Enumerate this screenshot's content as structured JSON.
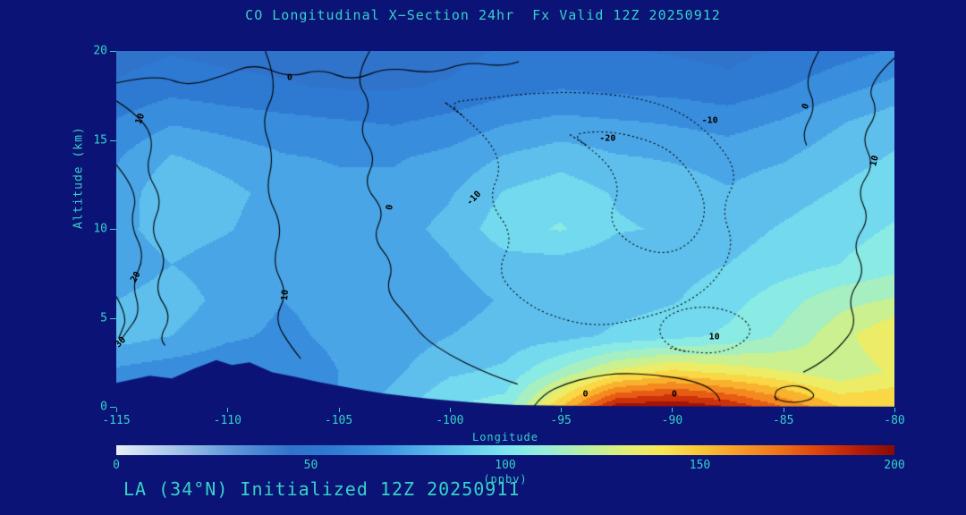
{
  "title": "CO Longitudinal X−Section 24hr  Fx Valid 12Z 20250912",
  "footer": "LA (34°N) Initialized 12Z 20250911",
  "colors": {
    "background": "#0b1377",
    "text": "#35d2c6",
    "contour": "#000000"
  },
  "chart_data": {
    "type": "heatmap",
    "xlabel": "Longitude",
    "ylabel": "Altitude (km)",
    "colorbar_label": "(ppbv)",
    "x_range": [
      -115,
      -80
    ],
    "y_range": [
      0,
      20
    ],
    "x_ticks": [
      -115,
      -110,
      -105,
      -100,
      -95,
      -90,
      -85,
      -80
    ],
    "y_ticks": [
      0,
      5,
      10,
      15,
      20
    ],
    "colorbar_ticks": [
      0,
      50,
      100,
      150,
      200
    ],
    "value_range": [
      0,
      200
    ],
    "band_step": 10,
    "colormap": [
      [
        0,
        "#e9eef7"
      ],
      [
        15,
        "#a6c6ea"
      ],
      [
        30,
        "#5e97d9"
      ],
      [
        45,
        "#3073cb"
      ],
      [
        55,
        "#2e79d2"
      ],
      [
        70,
        "#3f97e2"
      ],
      [
        80,
        "#54b2ea"
      ],
      [
        90,
        "#67ccee"
      ],
      [
        100,
        "#7ce6ee"
      ],
      [
        110,
        "#97eeda"
      ],
      [
        120,
        "#b6f0a6"
      ],
      [
        130,
        "#def078"
      ],
      [
        140,
        "#f9e854"
      ],
      [
        150,
        "#f9c636"
      ],
      [
        160,
        "#f79d26"
      ],
      [
        170,
        "#ef7517"
      ],
      [
        180,
        "#df430e"
      ],
      [
        190,
        "#b71e07"
      ],
      [
        200,
        "#8a0a04"
      ]
    ],
    "lons": [
      -115,
      -112.5,
      -110,
      -107.5,
      -105,
      -102.5,
      -100,
      -97.5,
      -95,
      -92.5,
      -90,
      -87.5,
      -85,
      -82.5,
      -80
    ],
    "alts": [
      0,
      2,
      4,
      6,
      8,
      10,
      12,
      14,
      16,
      18,
      20
    ],
    "grid": [
      [
        60,
        60,
        60,
        65,
        70,
        85,
        100,
        105,
        150,
        195,
        200,
        190,
        170,
        150,
        150
      ],
      [
        68,
        64,
        62,
        64,
        70,
        78,
        88,
        92,
        112,
        132,
        142,
        136,
        130,
        122,
        132
      ],
      [
        85,
        80,
        72,
        68,
        72,
        74,
        80,
        84,
        86,
        92,
        96,
        102,
        112,
        126,
        140
      ],
      [
        80,
        86,
        76,
        70,
        73,
        72,
        76,
        81,
        83,
        86,
        89,
        96,
        106,
        116,
        121
      ],
      [
        72,
        80,
        74,
        71,
        76,
        73,
        79,
        86,
        86,
        83,
        86,
        90,
        95,
        100,
        106
      ],
      [
        76,
        86,
        81,
        73,
        79,
        76,
        83,
        96,
        101,
        91,
        89,
        86,
        91,
        96,
        101
      ],
      [
        73,
        89,
        83,
        76,
        73,
        73,
        79,
        91,
        96,
        89,
        86,
        81,
        86,
        91,
        96
      ],
      [
        69,
        81,
        76,
        71,
        69,
        69,
        73,
        81,
        86,
        81,
        79,
        76,
        79,
        86,
        91
      ],
      [
        61,
        69,
        66,
        63,
        61,
        59,
        63,
        69,
        73,
        71,
        69,
        66,
        71,
        79,
        86
      ],
      [
        51,
        56,
        53,
        51,
        49,
        49,
        51,
        56,
        59,
        57,
        56,
        53,
        59,
        66,
        73
      ],
      [
        46,
        49,
        47,
        46,
        45,
        45,
        47,
        51,
        53,
        51,
        49,
        47,
        51,
        56,
        61
      ]
    ],
    "terrain": [
      [
        -115,
        1.35
      ],
      [
        -113.5,
        1.75
      ],
      [
        -112.5,
        1.6
      ],
      [
        -111.5,
        2.15
      ],
      [
        -110.5,
        2.62
      ],
      [
        -109.8,
        2.35
      ],
      [
        -109,
        2.5
      ],
      [
        -108,
        1.95
      ],
      [
        -107,
        1.7
      ],
      [
        -106,
        1.42
      ],
      [
        -105,
        1.18
      ],
      [
        -104,
        0.95
      ],
      [
        -103,
        0.75
      ],
      [
        -102,
        0.6
      ],
      [
        -101,
        0.46
      ],
      [
        -100,
        0.35
      ],
      [
        -99,
        0.25
      ],
      [
        -98,
        0.16
      ],
      [
        -97,
        0.1
      ],
      [
        -95,
        0.06
      ],
      [
        -92,
        0.04
      ],
      [
        -88,
        0.03
      ],
      [
        -84,
        0.02
      ],
      [
        -80,
        0.01
      ]
    ],
    "contours": [
      {
        "level": 0,
        "style": "solid",
        "closed": false,
        "points": [
          [
            -115,
            18.2
          ],
          [
            -113.2,
            18.7
          ],
          [
            -111.8,
            18.0
          ],
          [
            -110.2,
            18.6
          ],
          [
            -108.8,
            19.3
          ],
          [
            -107.2,
            18.5
          ],
          [
            -105.8,
            19.0
          ],
          [
            -104.4,
            18.3
          ],
          [
            -102.8,
            19.1
          ],
          [
            -100.8,
            18.7
          ],
          [
            -99.2,
            19.4
          ],
          [
            -97.6,
            19.1
          ],
          [
            -96.2,
            19.7
          ]
        ]
      },
      {
        "level": 10,
        "style": "solid",
        "closed": false,
        "points": [
          [
            -115,
            17.2
          ],
          [
            -113.9,
            16.3
          ],
          [
            -113.3,
            14.9
          ],
          [
            -113.7,
            13.3
          ],
          [
            -112.9,
            11.6
          ],
          [
            -113.5,
            9.9
          ],
          [
            -112.7,
            8.3
          ],
          [
            -113.3,
            6.6
          ],
          [
            -112.5,
            5.1
          ],
          [
            -113.1,
            3.8
          ],
          [
            -112.5,
            3.1
          ]
        ]
      },
      {
        "level": 20,
        "style": "solid",
        "closed": false,
        "points": [
          [
            -115,
            13.6
          ],
          [
            -114.0,
            12.1
          ],
          [
            -114.4,
            10.3
          ],
          [
            -113.7,
            8.5
          ],
          [
            -114.3,
            6.9
          ],
          [
            -113.9,
            5.3
          ],
          [
            -114.6,
            4.1
          ],
          [
            -115,
            3.4
          ]
        ]
      },
      {
        "level": 30,
        "style": "solid",
        "closed": false,
        "points": [
          [
            -115,
            6.2
          ],
          [
            -114.5,
            5.1
          ],
          [
            -114.8,
            4.1
          ],
          [
            -115,
            3.6
          ]
        ]
      },
      {
        "level": 0,
        "style": "solid",
        "closed": false,
        "points": [
          [
            -103.6,
            20
          ],
          [
            -104.3,
            18.5
          ],
          [
            -103.5,
            17.0
          ],
          [
            -104.1,
            15.5
          ],
          [
            -103.3,
            14.0
          ],
          [
            -103.9,
            12.5
          ],
          [
            -102.9,
            11.0
          ],
          [
            -103.5,
            9.5
          ],
          [
            -102.5,
            8.0
          ],
          [
            -102.9,
            6.5
          ],
          [
            -101.9,
            5.1
          ],
          [
            -101.2,
            3.9
          ],
          [
            -100.0,
            2.9
          ],
          [
            -98.7,
            2.1
          ],
          [
            -97.5,
            1.5
          ],
          [
            -96.4,
            1.05
          ]
        ]
      },
      {
        "level": 10,
        "style": "solid",
        "closed": false,
        "points": [
          [
            -108.3,
            20
          ],
          [
            -107.7,
            18.1
          ],
          [
            -108.5,
            16.1
          ],
          [
            -107.9,
            14.1
          ],
          [
            -108.3,
            12.1
          ],
          [
            -107.5,
            10.1
          ],
          [
            -108.0,
            8.1
          ],
          [
            -107.3,
            6.4
          ],
          [
            -107.9,
            4.9
          ],
          [
            -107.1,
            3.3
          ],
          [
            -106.3,
            2.1
          ]
        ]
      },
      {
        "level": -10,
        "style": "dotted",
        "closed": true,
        "points": [
          [
            -100.2,
            17.1
          ],
          [
            -98.6,
            15.6
          ],
          [
            -97.6,
            13.6
          ],
          [
            -98.3,
            11.6
          ],
          [
            -97.1,
            9.6
          ],
          [
            -97.9,
            7.6
          ],
          [
            -96.9,
            6.1
          ],
          [
            -95.5,
            5.1
          ],
          [
            -93.5,
            4.5
          ],
          [
            -91.5,
            4.9
          ],
          [
            -89.5,
            5.7
          ],
          [
            -88.0,
            7.1
          ],
          [
            -87.2,
            9.1
          ],
          [
            -87.8,
            11.1
          ],
          [
            -87.0,
            13.1
          ],
          [
            -88.1,
            15.1
          ],
          [
            -89.6,
            16.6
          ],
          [
            -91.6,
            17.4
          ],
          [
            -94.1,
            17.7
          ],
          [
            -96.6,
            17.6
          ],
          [
            -98.6,
            17.3
          ]
        ]
      },
      {
        "level": -20,
        "style": "dotted",
        "closed": true,
        "points": [
          [
            -94.6,
            15.3
          ],
          [
            -93.1,
            14.1
          ],
          [
            -92.3,
            12.3
          ],
          [
            -92.9,
            10.5
          ],
          [
            -91.9,
            9.1
          ],
          [
            -90.3,
            8.5
          ],
          [
            -89.0,
            9.3
          ],
          [
            -88.4,
            11.1
          ],
          [
            -89.0,
            12.9
          ],
          [
            -90.1,
            14.5
          ],
          [
            -91.9,
            15.3
          ],
          [
            -93.3,
            15.5
          ]
        ]
      },
      {
        "level": 10,
        "style": "dotted",
        "closed": true,
        "points": [
          [
            -90.1,
            3.3
          ],
          [
            -88.6,
            2.9
          ],
          [
            -87.1,
            3.3
          ],
          [
            -86.3,
            4.3
          ],
          [
            -87.1,
            5.3
          ],
          [
            -88.6,
            5.7
          ],
          [
            -90.1,
            5.3
          ],
          [
            -90.7,
            4.3
          ]
        ]
      },
      {
        "level": 0,
        "style": "solid",
        "closed": false,
        "points": [
          [
            -80,
            19.6
          ],
          [
            -81.3,
            18.1
          ],
          [
            -80.7,
            16.6
          ],
          [
            -81.5,
            15.1
          ],
          [
            -80.9,
            13.6
          ],
          [
            -81.7,
            12.1
          ],
          [
            -81.1,
            10.6
          ],
          [
            -81.9,
            9.1
          ],
          [
            -81.3,
            7.6
          ],
          [
            -82.1,
            6.1
          ],
          [
            -81.7,
            4.6
          ],
          [
            -82.5,
            3.3
          ],
          [
            -83.5,
            2.3
          ],
          [
            -84.7,
            1.6
          ]
        ]
      },
      {
        "level": 0,
        "style": "solid",
        "closed": false,
        "points": [
          [
            -83.4,
            20
          ],
          [
            -84.1,
            18.4
          ],
          [
            -83.5,
            16.9
          ],
          [
            -84.2,
            15.3
          ],
          [
            -83.7,
            14.1
          ]
        ]
      },
      {
        "level": 0,
        "style": "solid",
        "closed": false,
        "points": [
          [
            -96.2,
            0.05
          ],
          [
            -95.8,
            0.7
          ],
          [
            -94.8,
            1.3
          ],
          [
            -93.6,
            1.7
          ],
          [
            -92.3,
            1.9
          ],
          [
            -90.8,
            1.8
          ],
          [
            -89.4,
            1.55
          ],
          [
            -88.4,
            1.15
          ],
          [
            -87.9,
            0.6
          ],
          [
            -87.8,
            0.05
          ]
        ]
      },
      {
        "level": 0,
        "style": "solid",
        "closed": true,
        "points": [
          [
            -85.3,
            0.35
          ],
          [
            -85.5,
            0.85
          ],
          [
            -84.7,
            1.25
          ],
          [
            -83.9,
            1.05
          ],
          [
            -83.5,
            0.55
          ],
          [
            -84.3,
            0.2
          ]
        ]
      }
    ],
    "contour_labels": [
      {
        "text": "0",
        "lon": -107.2,
        "alt": 18.5,
        "rot": 0
      },
      {
        "text": "10",
        "lon": -113.9,
        "alt": 16.2,
        "rot": -70
      },
      {
        "text": "20",
        "lon": -114.1,
        "alt": 7.3,
        "rot": -60
      },
      {
        "text": "30",
        "lon": -114.8,
        "alt": 3.6,
        "rot": -45
      },
      {
        "text": "0",
        "lon": -102.7,
        "alt": 11.2,
        "rot": -80
      },
      {
        "text": "10",
        "lon": -107.4,
        "alt": 6.3,
        "rot": -85
      },
      {
        "text": "-10",
        "lon": -98.9,
        "alt": 11.7,
        "rot": -45
      },
      {
        "text": "-20",
        "lon": -92.9,
        "alt": 15.1,
        "rot": 0
      },
      {
        "text": "-10",
        "lon": -88.3,
        "alt": 16.1,
        "rot": 0
      },
      {
        "text": "10",
        "lon": -88.1,
        "alt": 3.9,
        "rot": 0
      },
      {
        "text": "0",
        "lon": -84.0,
        "alt": 16.9,
        "rot": -70
      },
      {
        "text": "0",
        "lon": -93.9,
        "alt": 0.7,
        "rot": 0
      },
      {
        "text": "0",
        "lon": -89.9,
        "alt": 0.7,
        "rot": 0
      },
      {
        "text": "10",
        "lon": -80.9,
        "alt": 13.8,
        "rot": -75
      }
    ]
  }
}
